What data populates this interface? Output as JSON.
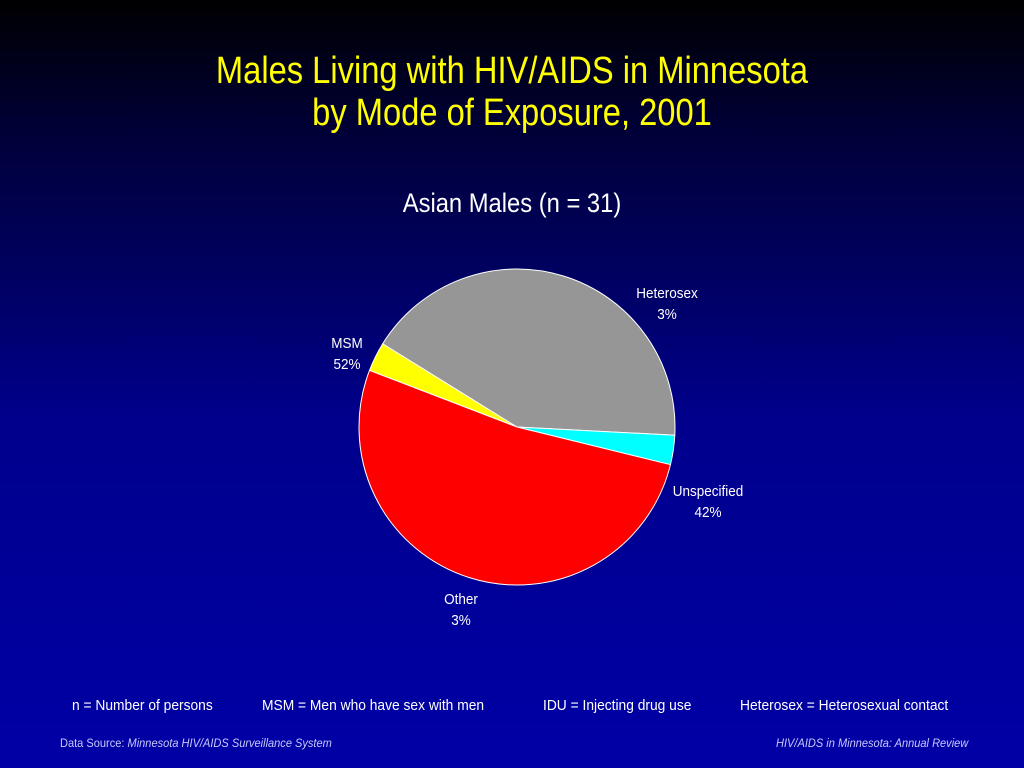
{
  "slide": {
    "title_line1": "Males Living with HIV/AIDS in Minnesota",
    "title_line2": "by Mode of Exposure, 2001"
  },
  "chart_data": {
    "type": "pie",
    "title": "Asian Males (n = 31)",
    "slices": [
      {
        "label": "Heterosex",
        "percent_label": "3%",
        "value": 3,
        "color": "#ffff00"
      },
      {
        "label": "Unspecified",
        "percent_label": "42%",
        "value": 42,
        "color": "#969696"
      },
      {
        "label": "Other",
        "percent_label": "3%",
        "value": 3,
        "color": "#00ffff"
      },
      {
        "label": "MSM",
        "percent_label": "52%",
        "value": 52,
        "color": "#ff0000"
      }
    ]
  },
  "legend": {
    "n_def": "n = Number of persons",
    "msm_def": "MSM = Men who have sex with men",
    "idu_def": "IDU = Injecting drug use",
    "heterosex_def": "Heterosex = Heterosexual contact"
  },
  "footer": {
    "source_prefix": "Data Source:",
    "source_name": "Minnesota HIV/AIDS Surveillance System",
    "publication": "HIV/AIDS in Minnesota: Annual Review"
  }
}
